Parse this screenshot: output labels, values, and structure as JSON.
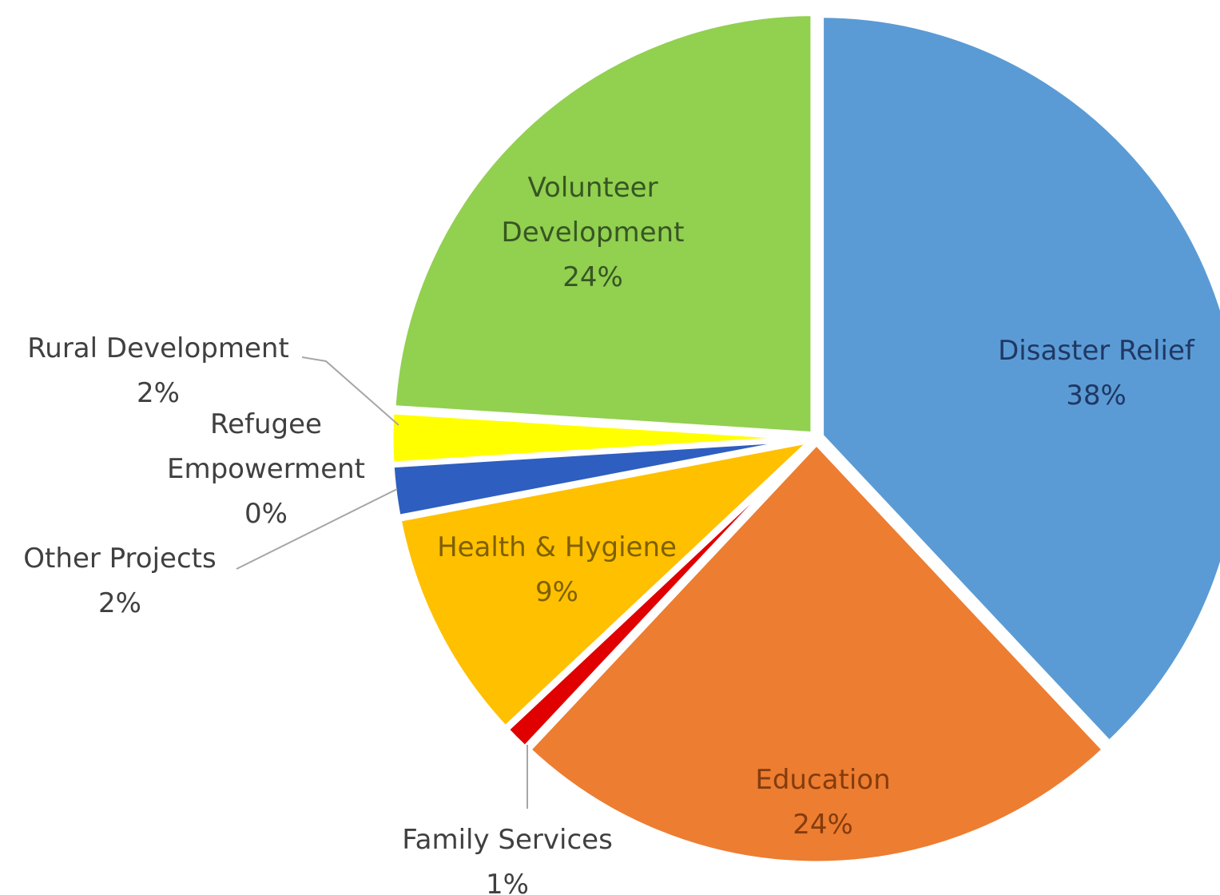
{
  "chart_data": {
    "type": "pie",
    "title": "",
    "legend": "none",
    "slices": [
      {
        "name": "Disaster Relief",
        "value": 38,
        "percent_label": "38%",
        "color": "#5b9bd5",
        "text_color": "#1f3864"
      },
      {
        "name": "Education",
        "value": 24,
        "percent_label": "24%",
        "color": "#ed7d31",
        "text_color": "#843c0c"
      },
      {
        "name": "Family Services",
        "value": 1,
        "percent_label": "1%",
        "color": "#e00000",
        "text_color": "#404040"
      },
      {
        "name": "Health & Hygiene",
        "value": 9,
        "percent_label": "9%",
        "color": "#ffc000",
        "text_color": "#7f6000"
      },
      {
        "name": "Other Projects",
        "value": 2,
        "percent_label": "2%",
        "color": "#2e5ebf",
        "text_color": "#404040"
      },
      {
        "name": "Refugee Empowerment",
        "value": 0,
        "percent_label": "0%",
        "color": "#7030a0",
        "text_color": "#404040"
      },
      {
        "name": "Rural Development",
        "value": 2,
        "percent_label": "2%",
        "color": "#ffff00",
        "text_color": "#404040"
      },
      {
        "name": "Volunteer Development",
        "value": 24,
        "percent_label": "24%",
        "color": "#92d050",
        "text_color": "#375623"
      }
    ]
  }
}
